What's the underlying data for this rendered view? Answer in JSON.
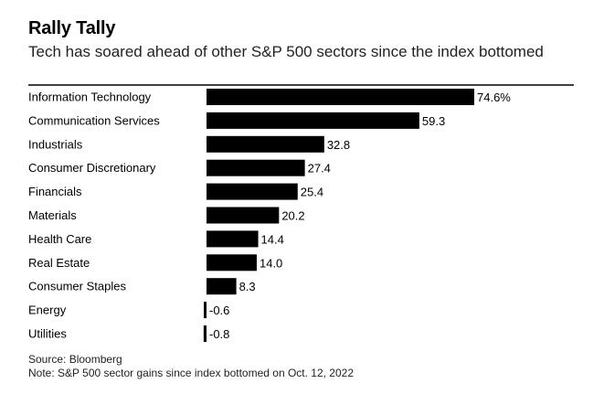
{
  "title": "Rally Tally",
  "subtitle": "Tech has soared ahead of other S&P 500 sectors since the index bottomed",
  "source": "Source: Bloomberg",
  "note": "Note: S&P 500 sector gains since index bottomed on Oct. 12, 2022",
  "colors": {
    "bar": "#000000",
    "rule": "#000000",
    "text": "#000000"
  },
  "chart_data": {
    "type": "bar",
    "orientation": "horizontal",
    "categories": [
      "Information Technology",
      "Communication Services",
      "Industrials",
      "Consumer Discretionary",
      "Financials",
      "Materials",
      "Health Care",
      "Real Estate",
      "Consumer Staples",
      "Energy",
      "Utilities"
    ],
    "values": [
      74.6,
      59.3,
      32.8,
      27.4,
      25.4,
      20.2,
      14.4,
      14.0,
      8.3,
      -0.6,
      -0.8
    ],
    "value_labels": [
      "74.6%",
      "59.3",
      "32.8",
      "27.4",
      "25.4",
      "20.2",
      "14.4",
      "14.0",
      "8.3",
      "-0.6",
      "-0.8"
    ],
    "xlim": [
      -0.8,
      74.6
    ],
    "grid": false
  }
}
